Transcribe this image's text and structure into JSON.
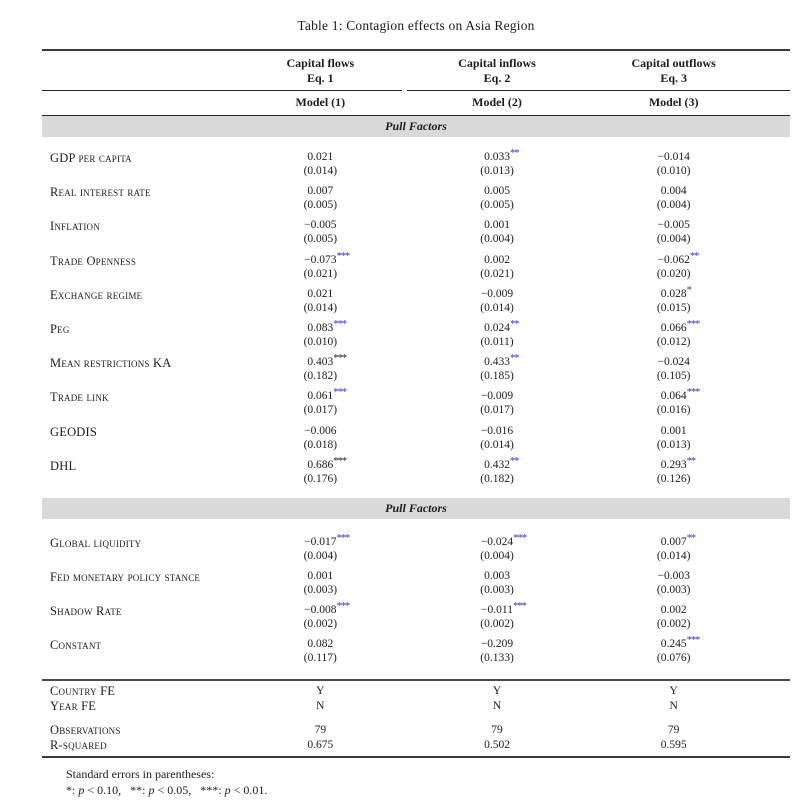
{
  "title": "Table 1:  Contagion effects on Asia Region",
  "colors": {
    "star_blue": "#3232d8",
    "band_gray": "#d9d9d9",
    "text": "#1c1c1c"
  },
  "header": {
    "groups": [
      {
        "line1": "Capital flows",
        "line2": "Eq. 1"
      },
      {
        "line1": "Capital inflows",
        "line2": "Eq. 2"
      },
      {
        "line1": "Capital outflows",
        "line2": "Eq. 3"
      }
    ],
    "models": [
      "Model (1)",
      "Model (2)",
      "Model (3)"
    ]
  },
  "sections": [
    {
      "band_label": "Pull Factors",
      "rows": [
        {
          "label": "GDP per capita",
          "cells": [
            {
              "coef": "0.021",
              "stars": "",
              "se": "(0.014)"
            },
            {
              "coef": "0.033",
              "stars": "**",
              "se": "(0.013)"
            },
            {
              "coef": "−0.014",
              "stars": "",
              "se": "(0.010)"
            }
          ]
        },
        {
          "label": "Real interest rate",
          "cells": [
            {
              "coef": "0.007",
              "stars": "",
              "se": "(0.005)"
            },
            {
              "coef": "0.005",
              "stars": "",
              "se": "(0.005)"
            },
            {
              "coef": "0.004",
              "stars": "",
              "se": "(0.004)"
            }
          ]
        },
        {
          "label": "Inflation",
          "cells": [
            {
              "coef": "−0.005",
              "stars": "",
              "se": "(0.005)"
            },
            {
              "coef": "0.001",
              "stars": "",
              "se": "(0.004)"
            },
            {
              "coef": "−0.005",
              "stars": "",
              "se": "(0.004)"
            }
          ]
        },
        {
          "label": "Trade Openness",
          "cells": [
            {
              "coef": "−0.073",
              "stars": "***",
              "se": "(0.021)"
            },
            {
              "coef": "0.002",
              "stars": "",
              "se": "(0.021)"
            },
            {
              "coef": "−0.062",
              "stars": "**",
              "se": "(0.020)"
            }
          ]
        },
        {
          "label": "Exchange regime",
          "cells": [
            {
              "coef": "0.021",
              "stars": "",
              "se": "(0.014)"
            },
            {
              "coef": "−0.009",
              "stars": "",
              "se": "(0.014)"
            },
            {
              "coef": "0.028",
              "stars": "*",
              "se": "(0.015)"
            }
          ]
        },
        {
          "label": "Peg",
          "cells": [
            {
              "coef": "0.083",
              "stars": "***",
              "se": "(0.010)"
            },
            {
              "coef": "0.024",
              "stars": "**",
              "se": "(0.011)"
            },
            {
              "coef": "0.066",
              "stars": "***",
              "se": "(0.012)"
            }
          ]
        },
        {
          "label": "Mean restrictions KA",
          "cells": [
            {
              "coef": "0.403",
              "stars": "***",
              "star_color": "#1c1c1c",
              "se": "(0.182)"
            },
            {
              "coef": "0.433",
              "stars": "**",
              "se": "(0.185)"
            },
            {
              "coef": "−0.024",
              "stars": "",
              "se": "(0.105)"
            }
          ]
        },
        {
          "label": "Trade link",
          "cells": [
            {
              "coef": "0.061",
              "stars": "***",
              "se": "(0.017)"
            },
            {
              "coef": "−0.009",
              "stars": "",
              "se": "(0.017)"
            },
            {
              "coef": "0.064",
              "stars": "***",
              "se": "(0.016)"
            }
          ]
        },
        {
          "label": "GEODIS",
          "cells": [
            {
              "coef": "−0.006",
              "stars": "",
              "se": "(0.018)"
            },
            {
              "coef": "−0.016",
              "stars": "",
              "se": "(0.014)"
            },
            {
              "coef": "0.001",
              "stars": "",
              "se": "(0.013)"
            }
          ]
        },
        {
          "label": "DHL",
          "cells": [
            {
              "coef": "0.686",
              "stars": "***",
              "star_color": "#1c1c1c",
              "se": "(0.176)"
            },
            {
              "coef": "0.432",
              "stars": "**",
              "se": "(0.182)"
            },
            {
              "coef": "0.293",
              "stars": "**",
              "se": "(0.126)"
            }
          ]
        }
      ]
    },
    {
      "band_label": "Pull Factors",
      "rows": [
        {
          "label": "Global liquidity",
          "cells": [
            {
              "coef": "−0.017",
              "stars": "***",
              "se": "(0.004)"
            },
            {
              "coef": "−0.024",
              "stars": "***",
              "se": "(0.004)"
            },
            {
              "coef": "0.007",
              "stars": "**",
              "se": "(0.014)"
            }
          ]
        },
        {
          "label": "Fed monetary policy stance",
          "cells": [
            {
              "coef": "0.001",
              "stars": "",
              "se": "(0.003)"
            },
            {
              "coef": "0.003",
              "stars": "",
              "se": "(0.003)"
            },
            {
              "coef": "−0.003",
              "stars": "",
              "se": "(0.003)"
            }
          ]
        },
        {
          "label": "Shadow Rate",
          "cells": [
            {
              "coef": "−0.008",
              "stars": "***",
              "se": "(0.002)"
            },
            {
              "coef": "−0.011",
              "stars": "***",
              "se": "(0.002)"
            },
            {
              "coef": "0.002",
              "stars": "",
              "se": "(0.002)"
            }
          ]
        },
        {
          "label": "Constant",
          "cells": [
            {
              "coef": "0.082",
              "stars": "",
              "se": "(0.117)"
            },
            {
              "coef": "−0.209",
              "stars": "",
              "se": "(0.133)"
            },
            {
              "coef": "0.245",
              "stars": "***",
              "se": "(0.076)"
            }
          ]
        }
      ]
    }
  ],
  "stats_groups": [
    [
      {
        "label": "Country FE",
        "values": [
          "Y",
          "Y",
          "Y"
        ]
      },
      {
        "label": "Year FE",
        "values": [
          "N",
          "N",
          "N"
        ]
      }
    ],
    [
      {
        "label": "Observations",
        "values": [
          "79",
          "79",
          "79"
        ]
      },
      {
        "label": "R-squared",
        "values": [
          "0.675",
          "0.502",
          "0.595"
        ]
      }
    ]
  ],
  "footnotes": {
    "line1": "Standard errors in parentheses:",
    "line2": [
      {
        "t": "*: "
      },
      {
        "t": "p",
        "i": true
      },
      {
        "t": " < 0.10,   "
      },
      {
        "t": "**: "
      },
      {
        "t": "p",
        "i": true
      },
      {
        "t": " < 0.05,   "
      },
      {
        "t": "***: "
      },
      {
        "t": "p",
        "i": true
      },
      {
        "t": " < 0.01."
      }
    ]
  }
}
